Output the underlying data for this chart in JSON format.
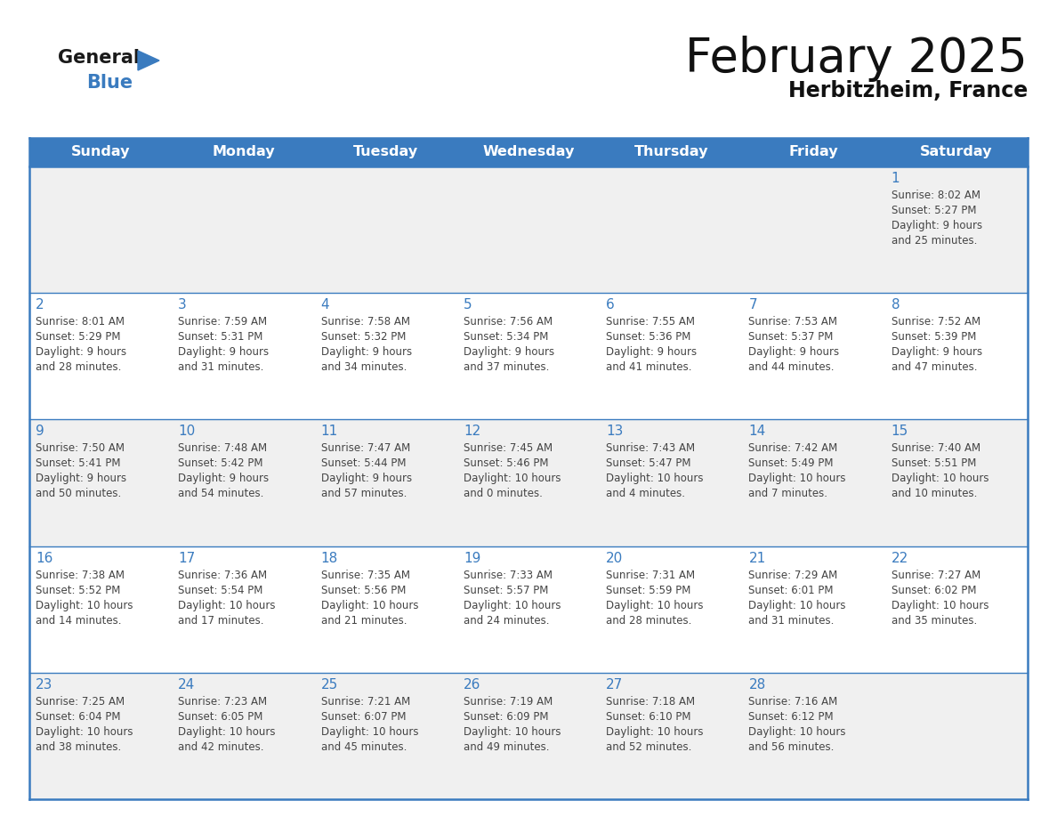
{
  "title": "February 2025",
  "subtitle": "Herbitzheim, France",
  "days_of_week": [
    "Sunday",
    "Monday",
    "Tuesday",
    "Wednesday",
    "Thursday",
    "Friday",
    "Saturday"
  ],
  "header_bg": "#3a7bbf",
  "header_text_color": "#ffffff",
  "cell_bg_light": "#f0f0f0",
  "cell_bg_white": "#ffffff",
  "day_num_color": "#3a7bbf",
  "info_text_color": "#444444",
  "line_color": "#3a7bbf",
  "bg_color": "#ffffff",
  "logo_black": "#1a1a1a",
  "logo_blue": "#3a7bbf",
  "title_color": "#111111",
  "subtitle_color": "#111111",
  "calendar": [
    [
      {
        "day": null,
        "sunrise": null,
        "sunset": null,
        "daylight": null
      },
      {
        "day": null,
        "sunrise": null,
        "sunset": null,
        "daylight": null
      },
      {
        "day": null,
        "sunrise": null,
        "sunset": null,
        "daylight": null
      },
      {
        "day": null,
        "sunrise": null,
        "sunset": null,
        "daylight": null
      },
      {
        "day": null,
        "sunrise": null,
        "sunset": null,
        "daylight": null
      },
      {
        "day": null,
        "sunrise": null,
        "sunset": null,
        "daylight": null
      },
      {
        "day": 1,
        "sunrise": "8:02 AM",
        "sunset": "5:27 PM",
        "daylight": "9 hours\nand 25 minutes."
      }
    ],
    [
      {
        "day": 2,
        "sunrise": "8:01 AM",
        "sunset": "5:29 PM",
        "daylight": "9 hours\nand 28 minutes."
      },
      {
        "day": 3,
        "sunrise": "7:59 AM",
        "sunset": "5:31 PM",
        "daylight": "9 hours\nand 31 minutes."
      },
      {
        "day": 4,
        "sunrise": "7:58 AM",
        "sunset": "5:32 PM",
        "daylight": "9 hours\nand 34 minutes."
      },
      {
        "day": 5,
        "sunrise": "7:56 AM",
        "sunset": "5:34 PM",
        "daylight": "9 hours\nand 37 minutes."
      },
      {
        "day": 6,
        "sunrise": "7:55 AM",
        "sunset": "5:36 PM",
        "daylight": "9 hours\nand 41 minutes."
      },
      {
        "day": 7,
        "sunrise": "7:53 AM",
        "sunset": "5:37 PM",
        "daylight": "9 hours\nand 44 minutes."
      },
      {
        "day": 8,
        "sunrise": "7:52 AM",
        "sunset": "5:39 PM",
        "daylight": "9 hours\nand 47 minutes."
      }
    ],
    [
      {
        "day": 9,
        "sunrise": "7:50 AM",
        "sunset": "5:41 PM",
        "daylight": "9 hours\nand 50 minutes."
      },
      {
        "day": 10,
        "sunrise": "7:48 AM",
        "sunset": "5:42 PM",
        "daylight": "9 hours\nand 54 minutes."
      },
      {
        "day": 11,
        "sunrise": "7:47 AM",
        "sunset": "5:44 PM",
        "daylight": "9 hours\nand 57 minutes."
      },
      {
        "day": 12,
        "sunrise": "7:45 AM",
        "sunset": "5:46 PM",
        "daylight": "10 hours\nand 0 minutes."
      },
      {
        "day": 13,
        "sunrise": "7:43 AM",
        "sunset": "5:47 PM",
        "daylight": "10 hours\nand 4 minutes."
      },
      {
        "day": 14,
        "sunrise": "7:42 AM",
        "sunset": "5:49 PM",
        "daylight": "10 hours\nand 7 minutes."
      },
      {
        "day": 15,
        "sunrise": "7:40 AM",
        "sunset": "5:51 PM",
        "daylight": "10 hours\nand 10 minutes."
      }
    ],
    [
      {
        "day": 16,
        "sunrise": "7:38 AM",
        "sunset": "5:52 PM",
        "daylight": "10 hours\nand 14 minutes."
      },
      {
        "day": 17,
        "sunrise": "7:36 AM",
        "sunset": "5:54 PM",
        "daylight": "10 hours\nand 17 minutes."
      },
      {
        "day": 18,
        "sunrise": "7:35 AM",
        "sunset": "5:56 PM",
        "daylight": "10 hours\nand 21 minutes."
      },
      {
        "day": 19,
        "sunrise": "7:33 AM",
        "sunset": "5:57 PM",
        "daylight": "10 hours\nand 24 minutes."
      },
      {
        "day": 20,
        "sunrise": "7:31 AM",
        "sunset": "5:59 PM",
        "daylight": "10 hours\nand 28 minutes."
      },
      {
        "day": 21,
        "sunrise": "7:29 AM",
        "sunset": "6:01 PM",
        "daylight": "10 hours\nand 31 minutes."
      },
      {
        "day": 22,
        "sunrise": "7:27 AM",
        "sunset": "6:02 PM",
        "daylight": "10 hours\nand 35 minutes."
      }
    ],
    [
      {
        "day": 23,
        "sunrise": "7:25 AM",
        "sunset": "6:04 PM",
        "daylight": "10 hours\nand 38 minutes."
      },
      {
        "day": 24,
        "sunrise": "7:23 AM",
        "sunset": "6:05 PM",
        "daylight": "10 hours\nand 42 minutes."
      },
      {
        "day": 25,
        "sunrise": "7:21 AM",
        "sunset": "6:07 PM",
        "daylight": "10 hours\nand 45 minutes."
      },
      {
        "day": 26,
        "sunrise": "7:19 AM",
        "sunset": "6:09 PM",
        "daylight": "10 hours\nand 49 minutes."
      },
      {
        "day": 27,
        "sunrise": "7:18 AM",
        "sunset": "6:10 PM",
        "daylight": "10 hours\nand 52 minutes."
      },
      {
        "day": 28,
        "sunrise": "7:16 AM",
        "sunset": "6:12 PM",
        "daylight": "10 hours\nand 56 minutes."
      },
      {
        "day": null,
        "sunrise": null,
        "sunset": null,
        "daylight": null
      }
    ]
  ]
}
